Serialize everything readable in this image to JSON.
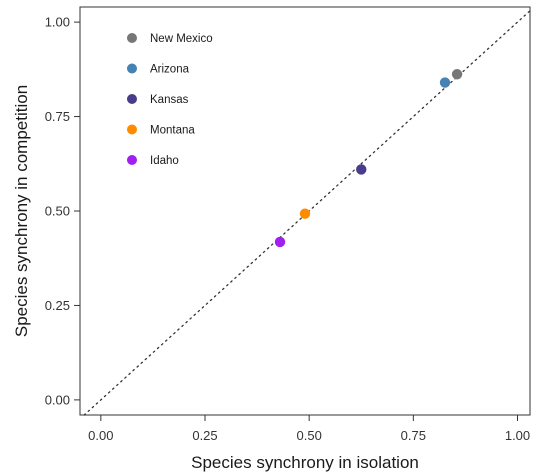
{
  "chart_data": {
    "type": "scatter",
    "title": "",
    "xlabel": "Species synchrony in isolation",
    "ylabel": "Species synchrony in competition",
    "xlim": [
      -0.05,
      1.03
    ],
    "ylim": [
      -0.04,
      1.04
    ],
    "xticks": [
      0.0,
      0.25,
      0.5,
      0.75,
      1.0
    ],
    "yticks": [
      0.0,
      0.25,
      0.5,
      0.75,
      1.0
    ],
    "xtick_labels": [
      "0.00",
      "0.25",
      "0.50",
      "0.75",
      "1.00"
    ],
    "ytick_labels": [
      "0.00",
      "0.25",
      "0.50",
      "0.75",
      "1.00"
    ],
    "grid": false,
    "legend_position": "top-left",
    "reference_line": "1:1 dotted",
    "series": [
      {
        "name": "New Mexico",
        "color": "#777777",
        "x": [
          0.855
        ],
        "y": [
          0.862
        ]
      },
      {
        "name": "Arizona",
        "color": "#4682b4",
        "x": [
          0.826
        ],
        "y": [
          0.84
        ]
      },
      {
        "name": "Kansas",
        "color": "#483d8b",
        "x": [
          0.625
        ],
        "y": [
          0.61
        ]
      },
      {
        "name": "Montana",
        "color": "#ff8c00",
        "x": [
          0.49
        ],
        "y": [
          0.493
        ]
      },
      {
        "name": "Idaho",
        "color": "#a020f0",
        "x": [
          0.43
        ],
        "y": [
          0.418
        ]
      }
    ]
  }
}
